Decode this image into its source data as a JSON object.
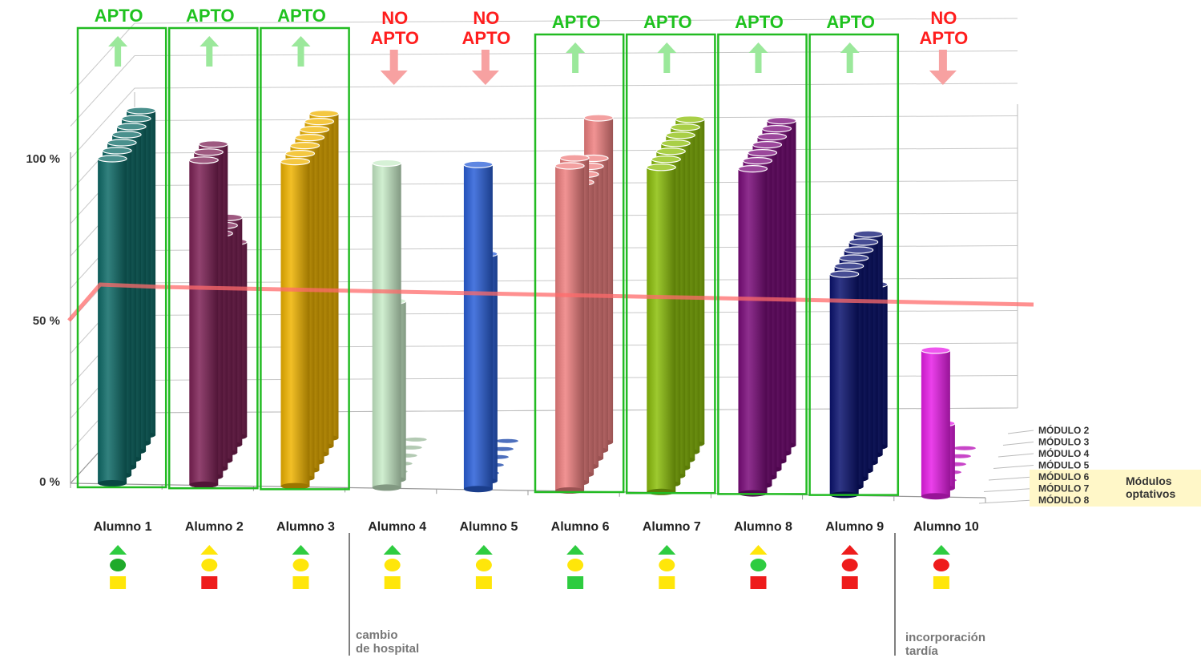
{
  "chart_data": {
    "type": "bar",
    "y_ticks": [
      "0 %",
      "50 %",
      "100 %"
    ],
    "ylim": [
      0,
      100
    ],
    "threshold_line": true,
    "threshold_color": "#ff6b6b",
    "categories": [
      "Alumno 1",
      "Alumno 2",
      "Alumno 3",
      "Alumno 4",
      "Alumno 5",
      "Alumno 6",
      "Alumno 7",
      "Alumno 8",
      "Alumno 9",
      "Alumno 10"
    ],
    "depth_labels": [
      "MÓDULO 2",
      "MÓDULO 3",
      "MÓDULO 4",
      "MÓDULO 5",
      "MÓDULO 6",
      "MÓDULO 7",
      "MÓDULO 8"
    ],
    "optional_label_line1": "Módulos",
    "optional_label_line2": "optativos",
    "students": [
      {
        "name": "Alumno 1",
        "status": "APTO",
        "apto": true,
        "color": "#0e6b67",
        "values": [
          100,
          100,
          100,
          100,
          100,
          100,
          100
        ],
        "icons": {
          "triangle": "#2ecc40",
          "circle": "#1faa2a",
          "square": "#ffe60a"
        }
      },
      {
        "name": "Alumno 2",
        "status": "APTO",
        "apto": true,
        "color": "#7d2155",
        "values": [
          100,
          100,
          100,
          70,
          70,
          70,
          60
        ],
        "icons": {
          "triangle": "#ffe60a",
          "circle": "#ffe60a",
          "square": "#ee1c1c"
        }
      },
      {
        "name": "Alumno 3",
        "status": "APTO",
        "apto": true,
        "color": "#f0b400",
        "values": [
          100,
          100,
          100,
          100,
          100,
          100,
          100
        ],
        "icons": {
          "triangle": "#2ecc40",
          "circle": "#ffe60a",
          "square": "#ffe60a"
        }
      },
      {
        "name": "Alumno 4",
        "status": "NO APTO",
        "apto": false,
        "color": "#c8ecc8",
        "values": [
          100,
          55,
          0,
          0,
          0,
          0,
          0
        ],
        "icons": {
          "triangle": "#2ecc40",
          "circle": "#ffe60a",
          "square": "#ffe60a"
        }
      },
      {
        "name": "Alumno 5",
        "status": "NO APTO",
        "apto": false,
        "color": "#2a5fd8",
        "values": [
          100,
          70,
          0,
          0,
          0,
          0,
          0
        ],
        "icons": {
          "triangle": "#2ecc40",
          "circle": "#ffe60a",
          "square": "#ffe60a"
        }
      },
      {
        "name": "Alumno 6",
        "status": "APTO",
        "apto": true,
        "color": "#ef8080",
        "values": [
          100,
          100,
          90,
          90,
          90,
          90,
          100
        ],
        "icons": {
          "triangle": "#2ecc40",
          "circle": "#ffe60a",
          "square": "#2ecc40"
        }
      },
      {
        "name": "Alumno 7",
        "status": "APTO",
        "apto": true,
        "color": "#8cbf0a",
        "values": [
          100,
          100,
          100,
          100,
          100,
          100,
          100
        ],
        "icons": {
          "triangle": "#2ecc40",
          "circle": "#ffe60a",
          "square": "#ffe60a"
        }
      },
      {
        "name": "Alumno 8",
        "status": "APTO",
        "apto": true,
        "color": "#7a0a7a",
        "values": [
          100,
          100,
          100,
          100,
          100,
          100,
          100
        ],
        "icons": {
          "triangle": "#ffe60a",
          "circle": "#2ecc40",
          "square": "#ee1c1c"
        }
      },
      {
        "name": "Alumno 9",
        "status": "APTO",
        "apto": true,
        "color": "#0a1270",
        "values": [
          68,
          68,
          68,
          68,
          68,
          68,
          50
        ],
        "icons": {
          "triangle": "#ee1c1c",
          "circle": "#ee1c1c",
          "square": "#ee1c1c"
        }
      },
      {
        "name": "Alumno 10",
        "status": "NO APTO",
        "apto": false,
        "color": "#e81ee8",
        "values": [
          45,
          20,
          0,
          0,
          0,
          0,
          0
        ],
        "icons": {
          "triangle": "#2ecc40",
          "circle": "#ee1c1c",
          "square": "#ffe60a"
        }
      }
    ]
  },
  "notes": {
    "note_1_line1": "cambio",
    "note_1_line2": "de hospital",
    "note_2_line1": "incorporación",
    "note_2_line2": "tardía"
  },
  "colors": {
    "apto_text": "#1fc21f",
    "no_apto_text": "#ff1e1e",
    "apto_box": "#22bb22",
    "apto_arrow": "#9be89b",
    "no_apto_arrow": "#f7a1a1",
    "grid": "#c8c8c8"
  }
}
